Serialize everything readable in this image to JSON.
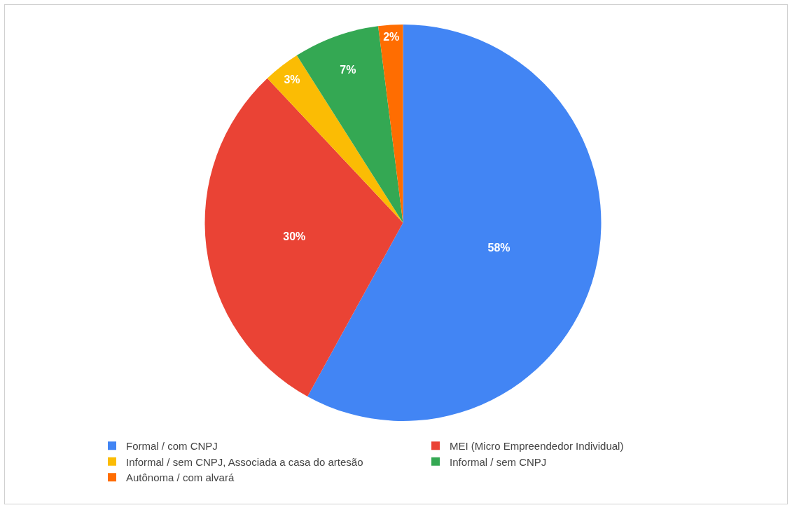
{
  "chart_data": {
    "type": "pie",
    "categories": [
      "Formal / com CNPJ",
      "MEI (Micro Empreendedor Individual)",
      "Informal / sem CNPJ, Associada a casa do artesão",
      "Informal / sem CNPJ",
      "Autônoma / com alvará"
    ],
    "values": [
      58,
      30,
      3,
      7,
      2
    ],
    "colors": [
      "#4285f4",
      "#ea4335",
      "#fbbc04",
      "#34a853",
      "#ff6d01"
    ],
    "value_labels": [
      "58%",
      "30%",
      "3%",
      "7%",
      "2%"
    ],
    "legend": "bottom"
  }
}
